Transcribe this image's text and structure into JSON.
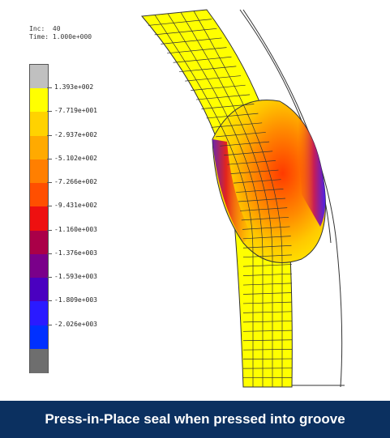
{
  "hud": {
    "inc_label": "Inc:",
    "inc_value": "40",
    "time_label": "Time:",
    "time_value": "1.000e+000"
  },
  "legend": {
    "colors": [
      "#c0c0c0",
      "#ffff00",
      "#ffd200",
      "#ffaa00",
      "#ff7f00",
      "#ff4f00",
      "#ee1010",
      "#aa0048",
      "#7a008a",
      "#4a00c0",
      "#2a1aff",
      "#0030ff",
      "#6e6e6e"
    ],
    "labels": [
      "1.393e+002",
      "-7.719e+001",
      "-2.937e+002",
      "-5.102e+002",
      "-7.266e+002",
      "-9.431e+002",
      "-1.160e+003",
      "-1.376e+003",
      "-1.593e+003",
      "-1.809e+003",
      "-2.026e+003"
    ]
  },
  "caption": "Press-in-Place seal when pressed into groove"
}
